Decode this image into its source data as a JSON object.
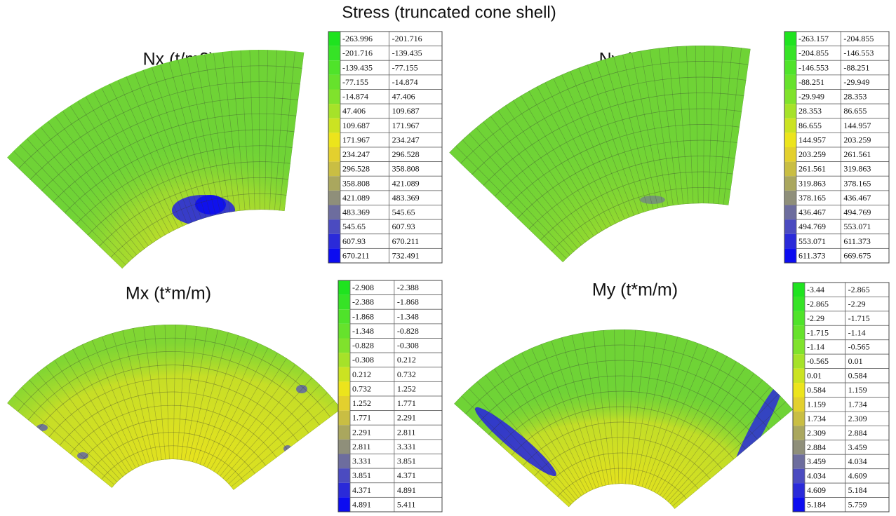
{
  "title": "Stress (truncated cone shell)",
  "legend_colors": [
    "#1fe31f",
    "#36e326",
    "#4fe32a",
    "#66e22c",
    "#80e22c",
    "#a6e229",
    "#cbe322",
    "#ece41c",
    "#e3d02e",
    "#c9be43",
    "#aaa75e",
    "#8f8f7a",
    "#6d6d9e",
    "#4b4bc0",
    "#2a2ad9",
    "#0c0cf0"
  ],
  "panels": [
    {
      "title": "Nx (t/m2)",
      "legend": [
        [
          "-263.996",
          "-201.716"
        ],
        [
          "-201.716",
          "-139.435"
        ],
        [
          "-139.435",
          "-77.155"
        ],
        [
          "-77.155",
          "-14.874"
        ],
        [
          "-14.874",
          "47.406"
        ],
        [
          "47.406",
          "109.687"
        ],
        [
          "109.687",
          "171.967"
        ],
        [
          "171.967",
          "234.247"
        ],
        [
          "234.247",
          "296.528"
        ],
        [
          "296.528",
          "358.808"
        ],
        [
          "358.808",
          "421.089"
        ],
        [
          "421.089",
          "483.369"
        ],
        [
          "483.369",
          "545.65"
        ],
        [
          "545.65",
          "607.93"
        ],
        [
          "607.93",
          "670.211"
        ],
        [
          "670.211",
          "732.491"
        ]
      ]
    },
    {
      "title": "Ny (t/m2)",
      "legend": [
        [
          "-263.157",
          "-204.855"
        ],
        [
          "-204.855",
          "-146.553"
        ],
        [
          "-146.553",
          "-88.251"
        ],
        [
          "-88.251",
          "-29.949"
        ],
        [
          "-29.949",
          "28.353"
        ],
        [
          "28.353",
          "86.655"
        ],
        [
          "86.655",
          "144.957"
        ],
        [
          "144.957",
          "203.259"
        ],
        [
          "203.259",
          "261.561"
        ],
        [
          "261.561",
          "319.863"
        ],
        [
          "319.863",
          "378.165"
        ],
        [
          "378.165",
          "436.467"
        ],
        [
          "436.467",
          "494.769"
        ],
        [
          "494.769",
          "553.071"
        ],
        [
          "553.071",
          "611.373"
        ],
        [
          "611.373",
          "669.675"
        ]
      ]
    },
    {
      "title": "Mx (t*m/m)",
      "legend": [
        [
          "-2.908",
          "-2.388"
        ],
        [
          "-2.388",
          "-1.868"
        ],
        [
          "-1.868",
          "-1.348"
        ],
        [
          "-1.348",
          "-0.828"
        ],
        [
          "-0.828",
          "-0.308"
        ],
        [
          "-0.308",
          "0.212"
        ],
        [
          "0.212",
          "0.732"
        ],
        [
          "0.732",
          "1.252"
        ],
        [
          "1.252",
          "1.771"
        ],
        [
          "1.771",
          "2.291"
        ],
        [
          "2.291",
          "2.811"
        ],
        [
          "2.811",
          "3.331"
        ],
        [
          "3.331",
          "3.851"
        ],
        [
          "3.851",
          "4.371"
        ],
        [
          "4.371",
          "4.891"
        ],
        [
          "4.891",
          "5.411"
        ]
      ]
    },
    {
      "title": "My (t*m/m)",
      "legend": [
        [
          "-3.44",
          "-2.865"
        ],
        [
          "-2.865",
          "-2.29"
        ],
        [
          "-2.29",
          "-1.715"
        ],
        [
          "-1.715",
          "-1.14"
        ],
        [
          "-1.14",
          "-0.565"
        ],
        [
          "-0.565",
          "0.01"
        ],
        [
          "0.01",
          "0.584"
        ],
        [
          "0.584",
          "1.159"
        ],
        [
          "1.159",
          "1.734"
        ],
        [
          "1.734",
          "2.309"
        ],
        [
          "2.309",
          "2.884"
        ],
        [
          "2.884",
          "3.459"
        ],
        [
          "3.459",
          "4.034"
        ],
        [
          "4.034",
          "4.609"
        ],
        [
          "4.609",
          "5.184"
        ],
        [
          "5.184",
          "5.759"
        ]
      ]
    }
  ]
}
